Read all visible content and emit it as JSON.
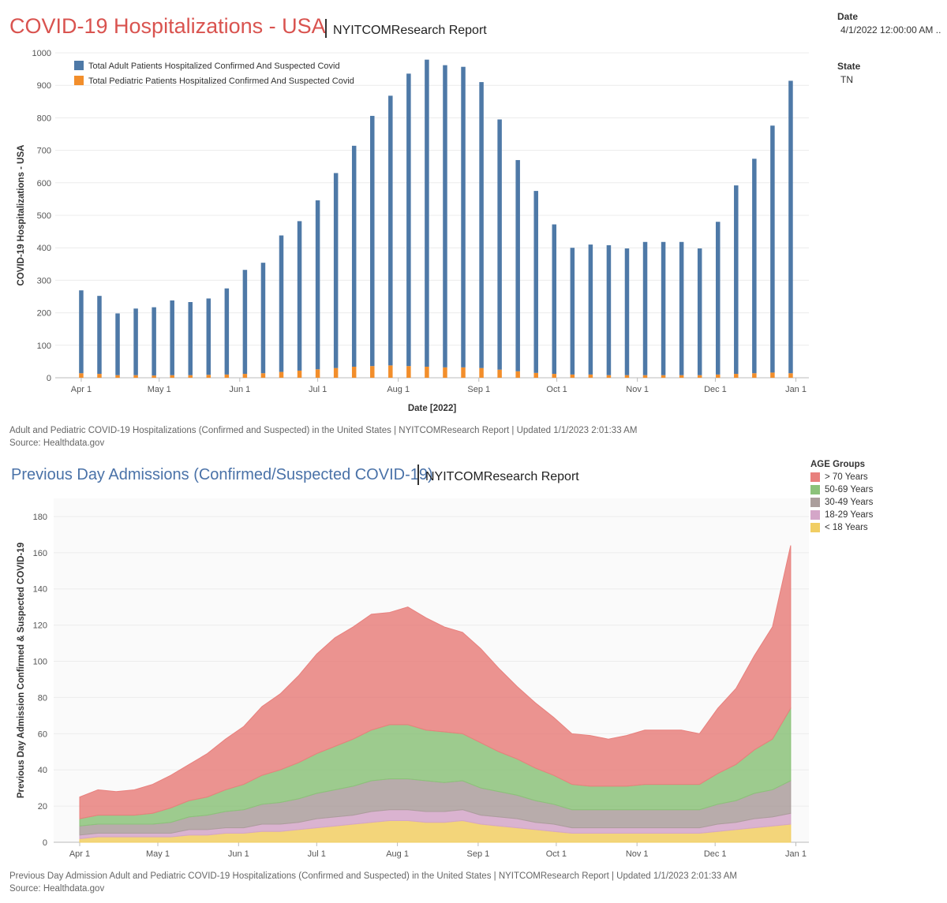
{
  "header": {
    "title": "COVID-19 Hospitalizations - USA",
    "report": "NYITCOMResearch Report"
  },
  "filters": {
    "date_label": "Date",
    "date_value": "4/1/2022 12:00:00 AM ..",
    "state_label": "State",
    "state_value": "TN"
  },
  "section2": {
    "title": "Previous Day Admissions (Confirmed/Suspected COVID-19)",
    "report": "NYITCOMResearch Report"
  },
  "footers": {
    "chart1_line1": "Adult and Pediatric COVID-19 Hospitalizations (Confirmed and Suspected) in the United States | NYITCOMResearch Report | Updated 1/1/2023 2:01:33 AM",
    "chart1_line2": "Source: Healthdata.gov",
    "chart2_line1": "Previous Day Admission Adult and Pediatric COVID-19 Hospitalizations (Confirmed and Suspected) in the United States | NYITCOMResearch Report | Updated 1/1/2023 2:01:33 AM",
    "chart2_line2": "Source: Healthdata.gov"
  },
  "chart_data": [
    {
      "type": "bar",
      "title": "",
      "xlabel": "Date [2022]",
      "ylabel": "COVID-19 Hospitalizations - USA",
      "ylim": [
        0,
        1000
      ],
      "yticks": [
        0,
        100,
        200,
        300,
        400,
        500,
        600,
        700,
        800,
        900,
        1000
      ],
      "xtick_labels": [
        "Apr 1",
        "May 1",
        "Jun 1",
        "Jul 1",
        "Aug 1",
        "Sep 1",
        "Oct 1",
        "Nov 1",
        "Dec 1",
        "Jan 1"
      ],
      "xtick_dates": [
        "2022-04-01",
        "2022-05-01",
        "2022-06-01",
        "2022-07-01",
        "2022-08-01",
        "2022-09-01",
        "2022-10-01",
        "2022-11-01",
        "2022-12-01",
        "2023-01-01"
      ],
      "x_weekly": [
        "2022-04-01",
        "2022-04-08",
        "2022-04-15",
        "2022-04-22",
        "2022-04-29",
        "2022-05-06",
        "2022-05-13",
        "2022-05-20",
        "2022-05-27",
        "2022-06-03",
        "2022-06-10",
        "2022-06-17",
        "2022-06-24",
        "2022-07-01",
        "2022-07-08",
        "2022-07-15",
        "2022-07-22",
        "2022-07-29",
        "2022-08-05",
        "2022-08-12",
        "2022-08-19",
        "2022-08-26",
        "2022-09-02",
        "2022-09-09",
        "2022-09-16",
        "2022-09-23",
        "2022-09-30",
        "2022-10-07",
        "2022-10-14",
        "2022-10-21",
        "2022-10-28",
        "2022-11-04",
        "2022-11-11",
        "2022-11-18",
        "2022-11-25",
        "2022-12-02",
        "2022-12-09",
        "2022-12-16",
        "2022-12-23",
        "2022-12-30"
      ],
      "legend": {
        "placement": "top-left"
      },
      "series": [
        {
          "name": "Total Adult Patients Hospitalized Confirmed And Suspected Covid",
          "color": "#4e79a7",
          "values": [
            255,
            240,
            190,
            205,
            210,
            230,
            225,
            235,
            265,
            320,
            340,
            420,
            460,
            520,
            600,
            680,
            770,
            830,
            900,
            945,
            930,
            925,
            880,
            770,
            650,
            560,
            460,
            390,
            400,
            400,
            390,
            410,
            410,
            410,
            390,
            470,
            580,
            660,
            760,
            900
          ]
        },
        {
          "name": "Total Pediatric Patients Hospitalized Confirmed And Suspected Covid",
          "color": "#f28e2b",
          "values": [
            14,
            12,
            8,
            8,
            7,
            8,
            8,
            9,
            10,
            12,
            14,
            18,
            22,
            26,
            30,
            34,
            36,
            38,
            36,
            34,
            32,
            32,
            30,
            25,
            20,
            15,
            12,
            10,
            10,
            8,
            8,
            8,
            8,
            8,
            8,
            10,
            12,
            14,
            16,
            14
          ]
        }
      ]
    },
    {
      "type": "area",
      "title": "",
      "xlabel": "",
      "ylabel": "Previous Day Admission Confirmed & Suspected COVID-19",
      "ylim": [
        0,
        190
      ],
      "yticks": [
        0,
        20,
        40,
        60,
        80,
        100,
        120,
        140,
        160,
        180
      ],
      "xtick_labels": [
        "Apr 1",
        "May 1",
        "Jun 1",
        "Jul 1",
        "Aug 1",
        "Sep 1",
        "Oct 1",
        "Nov 1",
        "Dec 1",
        "Jan 1"
      ],
      "xtick_dates": [
        "2022-04-01",
        "2022-05-01",
        "2022-06-01",
        "2022-07-01",
        "2022-08-01",
        "2022-09-01",
        "2022-10-01",
        "2022-11-01",
        "2022-12-01",
        "2023-01-01"
      ],
      "legend": {
        "title": "AGE Groups",
        "placement": "right"
      },
      "x_weekly": [
        "2022-04-01",
        "2022-04-08",
        "2022-04-15",
        "2022-04-22",
        "2022-04-29",
        "2022-05-06",
        "2022-05-13",
        "2022-05-20",
        "2022-05-27",
        "2022-06-03",
        "2022-06-10",
        "2022-06-17",
        "2022-06-24",
        "2022-07-01",
        "2022-07-08",
        "2022-07-15",
        "2022-07-22",
        "2022-07-29",
        "2022-08-05",
        "2022-08-12",
        "2022-08-19",
        "2022-08-26",
        "2022-09-02",
        "2022-09-09",
        "2022-09-16",
        "2022-09-23",
        "2022-09-30",
        "2022-10-07",
        "2022-10-14",
        "2022-10-21",
        "2022-10-28",
        "2022-11-04",
        "2022-11-11",
        "2022-11-18",
        "2022-11-25",
        "2022-12-02",
        "2022-12-09",
        "2022-12-16",
        "2022-12-23",
        "2022-12-30"
      ],
      "series": [
        {
          "name": "< 18 Years",
          "color": "#f1ce63",
          "values": [
            2,
            3,
            3,
            3,
            3,
            3,
            4,
            4,
            5,
            5,
            6,
            6,
            7,
            8,
            9,
            10,
            11,
            12,
            12,
            11,
            11,
            12,
            10,
            9,
            8,
            7,
            6,
            5,
            5,
            5,
            5,
            5,
            5,
            5,
            5,
            6,
            7,
            8,
            9,
            10
          ]
        },
        {
          "name": "18-29 Years",
          "color": "#d4a6c8",
          "values": [
            2,
            2,
            2,
            2,
            2,
            2,
            3,
            3,
            3,
            3,
            4,
            4,
            4,
            5,
            5,
            5,
            6,
            6,
            6,
            6,
            6,
            6,
            5,
            5,
            5,
            4,
            4,
            3,
            3,
            3,
            3,
            3,
            3,
            3,
            3,
            4,
            4,
            5,
            5,
            6
          ]
        },
        {
          "name": "30-49 Years",
          "color": "#ab9e9c",
          "values": [
            5,
            5,
            5,
            5,
            5,
            6,
            7,
            8,
            9,
            10,
            11,
            12,
            13,
            14,
            15,
            16,
            17,
            17,
            17,
            17,
            16,
            16,
            15,
            14,
            13,
            12,
            11,
            10,
            10,
            10,
            10,
            10,
            10,
            10,
            10,
            11,
            12,
            14,
            15,
            18
          ]
        },
        {
          "name": "50-69 Years",
          "color": "#8cc27a",
          "values": [
            4,
            5,
            5,
            5,
            6,
            8,
            9,
            10,
            12,
            14,
            16,
            18,
            20,
            22,
            24,
            26,
            28,
            30,
            30,
            28,
            28,
            26,
            25,
            22,
            20,
            18,
            16,
            14,
            13,
            13,
            13,
            14,
            14,
            14,
            14,
            17,
            20,
            24,
            28,
            40
          ]
        },
        {
          "name": "> 70 Years",
          "color": "#e8807d",
          "values": [
            12,
            14,
            13,
            14,
            16,
            18,
            20,
            24,
            28,
            32,
            38,
            42,
            48,
            55,
            60,
            62,
            64,
            62,
            65,
            62,
            58,
            56,
            52,
            46,
            40,
            36,
            32,
            28,
            28,
            26,
            28,
            30,
            30,
            30,
            28,
            36,
            42,
            52,
            62,
            90
          ]
        }
      ]
    }
  ]
}
